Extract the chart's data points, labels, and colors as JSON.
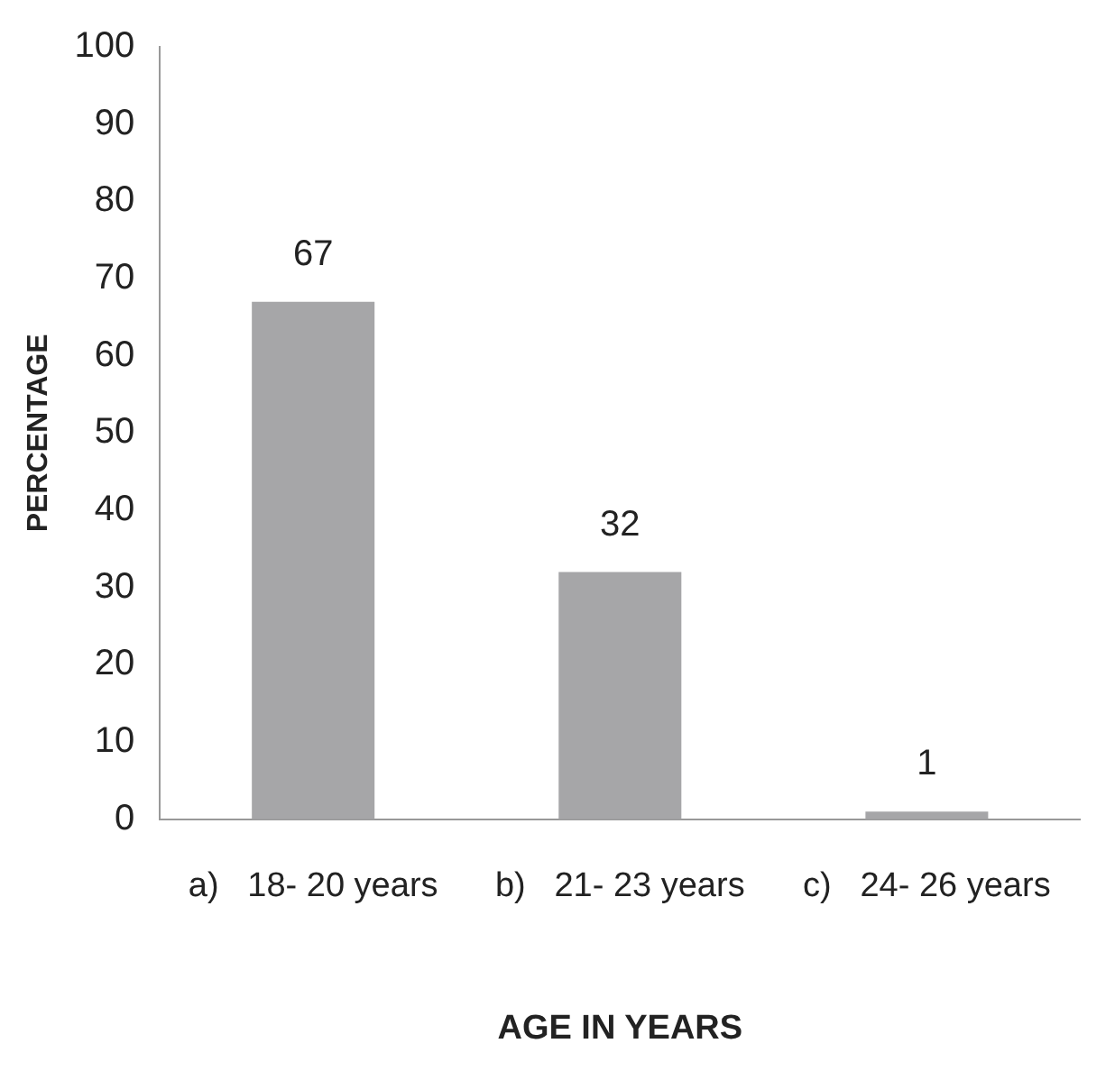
{
  "chart_data": {
    "type": "bar",
    "xlabel": "AGE IN YEARS",
    "ylabel": "PERCENTAGE",
    "categories": [
      "a)   18- 20 years",
      "b)   21- 23 years",
      "c)   24- 26 years"
    ],
    "values": [
      67,
      32,
      1
    ],
    "color": "#a6a6a8",
    "ylim": [
      0,
      100
    ],
    "yticks": [
      0,
      10,
      20,
      30,
      40,
      50,
      60,
      70,
      80,
      90,
      100
    ],
    "grid": false,
    "legend": false,
    "data_labels": true
  }
}
